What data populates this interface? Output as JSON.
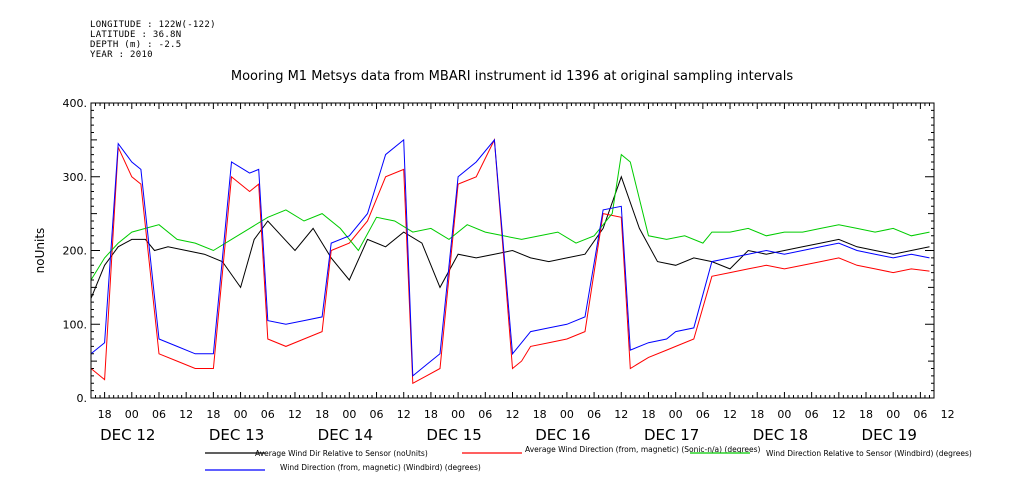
{
  "meta": {
    "longitude": "LONGITUDE : 122W(-122)",
    "latitude": "LATITUDE : 36.8N",
    "depth": "DEPTH (m) : -2.5",
    "year": "YEAR : 2010"
  },
  "chart_data": {
    "type": "line",
    "title": "Mooring M1 Metsys data from MBARI instrument id 1396 at original sampling intervals",
    "ylabel": "noUnits",
    "xlabel": "",
    "ylim": [
      0,
      400
    ],
    "yticks": [
      "0.",
      "100.",
      "200.",
      "300.",
      "400."
    ],
    "xlim_hours": [
      -9,
      177
    ],
    "hour_labels": [
      "18",
      "00",
      "06",
      "12",
      "18",
      "00",
      "06",
      "12",
      "18",
      "00",
      "06",
      "12",
      "18",
      "00",
      "06",
      "12",
      "18",
      "00",
      "06",
      "12",
      "18",
      "00",
      "06",
      "12",
      "18",
      "00",
      "06",
      "12",
      "18",
      "00",
      "06",
      "12"
    ],
    "day_labels": [
      "DEC 12",
      "DEC 13",
      "DEC 14",
      "DEC 15",
      "DEC 16",
      "DEC 17",
      "DEC 18",
      "DEC 19"
    ],
    "grid": false,
    "legend_position": "bottom",
    "series": [
      {
        "name": "Average Wind Dir Relative to Sensor (noUnits)",
        "color": "#000000",
        "x": [
          -9,
          -6,
          -3,
          0,
          3,
          5,
          8,
          12,
          16,
          20,
          24,
          27,
          30,
          33,
          36,
          40,
          44,
          48,
          52,
          56,
          60,
          64,
          68,
          72,
          76,
          80,
          84,
          88,
          92,
          96,
          100,
          104,
          108,
          112,
          116,
          120,
          124,
          128,
          132,
          136,
          140,
          144,
          148,
          152,
          156,
          160,
          164,
          168,
          172,
          176
        ],
        "y": [
          135,
          180,
          205,
          215,
          215,
          200,
          205,
          200,
          195,
          185,
          150,
          215,
          240,
          220,
          200,
          230,
          190,
          160,
          215,
          205,
          225,
          210,
          150,
          195,
          190,
          195,
          200,
          190,
          185,
          190,
          195,
          230,
          300,
          230,
          185,
          180,
          190,
          185,
          175,
          200,
          195,
          200,
          205,
          210,
          215,
          205,
          200,
          195,
          200,
          205
        ]
      },
      {
        "name": "Average Wind Direction (from, magnetic) (Sonic-n/a) (degrees)",
        "color": "#ff0000",
        "x": [
          -9,
          -6,
          -3,
          0,
          2,
          6,
          10,
          14,
          18,
          22,
          26,
          28,
          30,
          34,
          38,
          42,
          44,
          48,
          52,
          56,
          60,
          62,
          65,
          68,
          72,
          76,
          80,
          84,
          86,
          88,
          92,
          96,
          100,
          104,
          108,
          110,
          114,
          118,
          120,
          124,
          128,
          132,
          136,
          140,
          144,
          148,
          152,
          156,
          160,
          164,
          168,
          172,
          176
        ],
        "y": [
          40,
          25,
          340,
          300,
          290,
          60,
          50,
          40,
          40,
          300,
          280,
          290,
          80,
          70,
          80,
          90,
          200,
          210,
          240,
          300,
          310,
          20,
          30,
          40,
          290,
          300,
          350,
          40,
          50,
          70,
          75,
          80,
          90,
          250,
          245,
          40,
          55,
          65,
          70,
          80,
          165,
          170,
          175,
          180,
          175,
          180,
          185,
          190,
          180,
          175,
          170,
          175,
          172
        ]
      },
      {
        "name": "Wind Direction Relative to Sensor (Windbird) (degrees)",
        "color": "#00cc00",
        "x": [
          -9,
          -6,
          -3,
          0,
          3,
          6,
          10,
          14,
          18,
          22,
          26,
          30,
          34,
          38,
          42,
          46,
          50,
          54,
          58,
          62,
          66,
          70,
          74,
          78,
          82,
          86,
          90,
          94,
          98,
          102,
          106,
          108,
          110,
          114,
          118,
          122,
          126,
          128,
          132,
          136,
          140,
          144,
          148,
          152,
          156,
          160,
          164,
          168,
          172,
          176
        ],
        "y": [
          160,
          190,
          210,
          225,
          230,
          235,
          215,
          210,
          200,
          215,
          230,
          245,
          255,
          240,
          250,
          230,
          200,
          245,
          240,
          225,
          230,
          215,
          235,
          225,
          220,
          215,
          220,
          225,
          210,
          220,
          250,
          330,
          320,
          220,
          215,
          220,
          210,
          225,
          225,
          230,
          220,
          225,
          225,
          230,
          235,
          230,
          225,
          230,
          220,
          225
        ]
      },
      {
        "name": "Wind Direction (from, magnetic) (Windbird) (degrees)",
        "color": "#0000ff",
        "x": [
          -9,
          -6,
          -3,
          0,
          2,
          6,
          10,
          14,
          18,
          22,
          26,
          28,
          30,
          34,
          38,
          42,
          44,
          48,
          52,
          56,
          60,
          62,
          65,
          68,
          72,
          76,
          80,
          84,
          86,
          88,
          92,
          96,
          100,
          104,
          108,
          110,
          114,
          118,
          120,
          124,
          128,
          132,
          136,
          140,
          144,
          148,
          152,
          156,
          160,
          164,
          168,
          172,
          176
        ],
        "y": [
          60,
          75,
          345,
          320,
          310,
          80,
          70,
          60,
          60,
          320,
          305,
          310,
          105,
          100,
          105,
          110,
          210,
          220,
          250,
          330,
          350,
          30,
          45,
          60,
          300,
          320,
          350,
          60,
          75,
          90,
          95,
          100,
          110,
          255,
          260,
          65,
          75,
          80,
          90,
          95,
          185,
          190,
          195,
          200,
          195,
          200,
          205,
          210,
          200,
          195,
          190,
          195,
          190
        ]
      }
    ]
  }
}
